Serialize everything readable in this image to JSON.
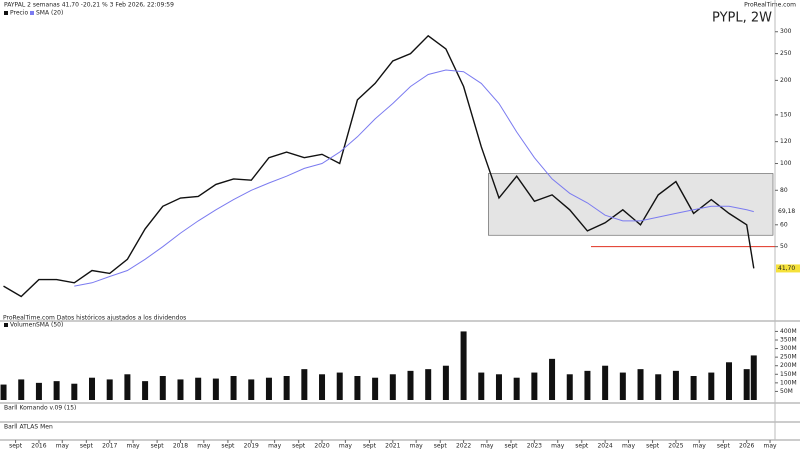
{
  "chart_data": {
    "type": "line",
    "title": "PYPL, 2W",
    "header": "PAYPAL 2 semanas 41,70 -20,21 % 3 Feb 2026, 22:09:59",
    "brand": "ProRealTime.com",
    "footnote": "ProRealTime.com Datos históricos ajustados a los dividendos",
    "log_scale": true,
    "xlim": [
      2015.45,
      2026.4
    ],
    "ylim": [
      29,
      320
    ],
    "yticks": [
      300,
      250,
      200,
      150,
      120,
      100,
      80,
      60,
      50
    ],
    "xticks": [
      {
        "value": 2015.67,
        "label": "sept"
      },
      2016,
      {
        "value": 2016.33,
        "label": "may"
      },
      {
        "value": 2016.67,
        "label": "sept"
      },
      2017,
      {
        "value": 2017.33,
        "label": "may"
      },
      {
        "value": 2017.67,
        "label": "sept"
      },
      2018,
      {
        "value": 2018.33,
        "label": "may"
      },
      {
        "value": 2018.67,
        "label": "sept"
      },
      2019,
      {
        "value": 2019.33,
        "label": "may"
      },
      {
        "value": 2019.67,
        "label": "sept"
      },
      2020,
      {
        "value": 2020.33,
        "label": "may"
      },
      {
        "value": 2020.67,
        "label": "sept"
      },
      2021,
      {
        "value": 2021.33,
        "label": "may"
      },
      {
        "value": 2021.67,
        "label": "sept"
      },
      2022,
      {
        "value": 2022.33,
        "label": "may"
      },
      {
        "value": 2022.67,
        "label": "sept"
      },
      2023,
      {
        "value": 2023.33,
        "label": "may"
      },
      {
        "value": 2023.67,
        "label": "sept"
      },
      2024,
      {
        "value": 2024.33,
        "label": "may"
      },
      {
        "value": 2024.67,
        "label": "sept"
      },
      2025,
      {
        "value": 2025.33,
        "label": "may"
      },
      {
        "value": 2025.67,
        "label": "sept"
      },
      2026,
      {
        "value": 2026.33,
        "label": "may"
      }
    ],
    "x": [
      2015.5,
      2015.75,
      2016,
      2016.25,
      2016.5,
      2016.75,
      2017,
      2017.25,
      2017.5,
      2017.75,
      2018,
      2018.25,
      2018.5,
      2018.75,
      2019,
      2019.25,
      2019.5,
      2019.75,
      2020,
      2020.25,
      2020.5,
      2020.75,
      2021,
      2021.25,
      2021.5,
      2021.75,
      2022,
      2022.25,
      2022.5,
      2022.75,
      2023,
      2023.25,
      2023.5,
      2023.75,
      2024,
      2024.25,
      2024.5,
      2024.75,
      2025,
      2025.25,
      2025.5,
      2025.75,
      2026,
      2026.1
    ],
    "series": [
      {
        "name": "Precio",
        "color": "#111111",
        "values": [
          36,
          33,
          38,
          38,
          37,
          41,
          40,
          45,
          58,
          70,
          75,
          76,
          84,
          88,
          87,
          105,
          110,
          105,
          108,
          100,
          170,
          195,
          235,
          250,
          290,
          260,
          190,
          115,
          75,
          90,
          73,
          77,
          68,
          57,
          61,
          68,
          60,
          77,
          86,
          66,
          74,
          66,
          60,
          41.7
        ],
        "last_label": "41,70"
      },
      {
        "name": "SMA (20)",
        "color": "#7b7bf0",
        "values": [
          null,
          null,
          null,
          null,
          36,
          37,
          39,
          41,
          45,
          50,
          56,
          62,
          68,
          74,
          80,
          85,
          90,
          96,
          100,
          110,
          125,
          145,
          165,
          190,
          210,
          218,
          215,
          195,
          165,
          130,
          105,
          88,
          78,
          72,
          65,
          62,
          62,
          64,
          66,
          68,
          70,
          70,
          68,
          67
        ],
        "last_label": "69,18"
      }
    ],
    "zone": [
      55,
      92
    ],
    "support": 50,
    "volume": {
      "title": "Volumen",
      "sma_name": "SMA (50)",
      "color": "#111111",
      "ylim": [
        0,
        420
      ],
      "yticks": [
        {
          "value": 400,
          "label": "400M"
        },
        {
          "value": 350,
          "label": "350M"
        },
        {
          "value": 300,
          "label": "300M"
        },
        {
          "value": 250,
          "label": "250M"
        },
        {
          "value": 200,
          "label": "200M"
        },
        {
          "value": 150,
          "label": "150M"
        },
        {
          "value": 100,
          "label": "100M"
        },
        {
          "value": 50,
          "label": "50M"
        }
      ],
      "values": [
        90,
        120,
        100,
        110,
        95,
        130,
        120,
        150,
        110,
        140,
        120,
        130,
        125,
        140,
        120,
        130,
        140,
        180,
        150,
        160,
        140,
        130,
        150,
        170,
        180,
        200,
        400,
        160,
        150,
        130,
        160,
        240,
        150,
        170,
        200,
        160,
        180,
        150,
        170,
        140,
        160,
        220,
        180,
        260
      ]
    },
    "indicators": [
      "Barll Komando v.09 (15)",
      "Barll ATLAS Men"
    ]
  }
}
